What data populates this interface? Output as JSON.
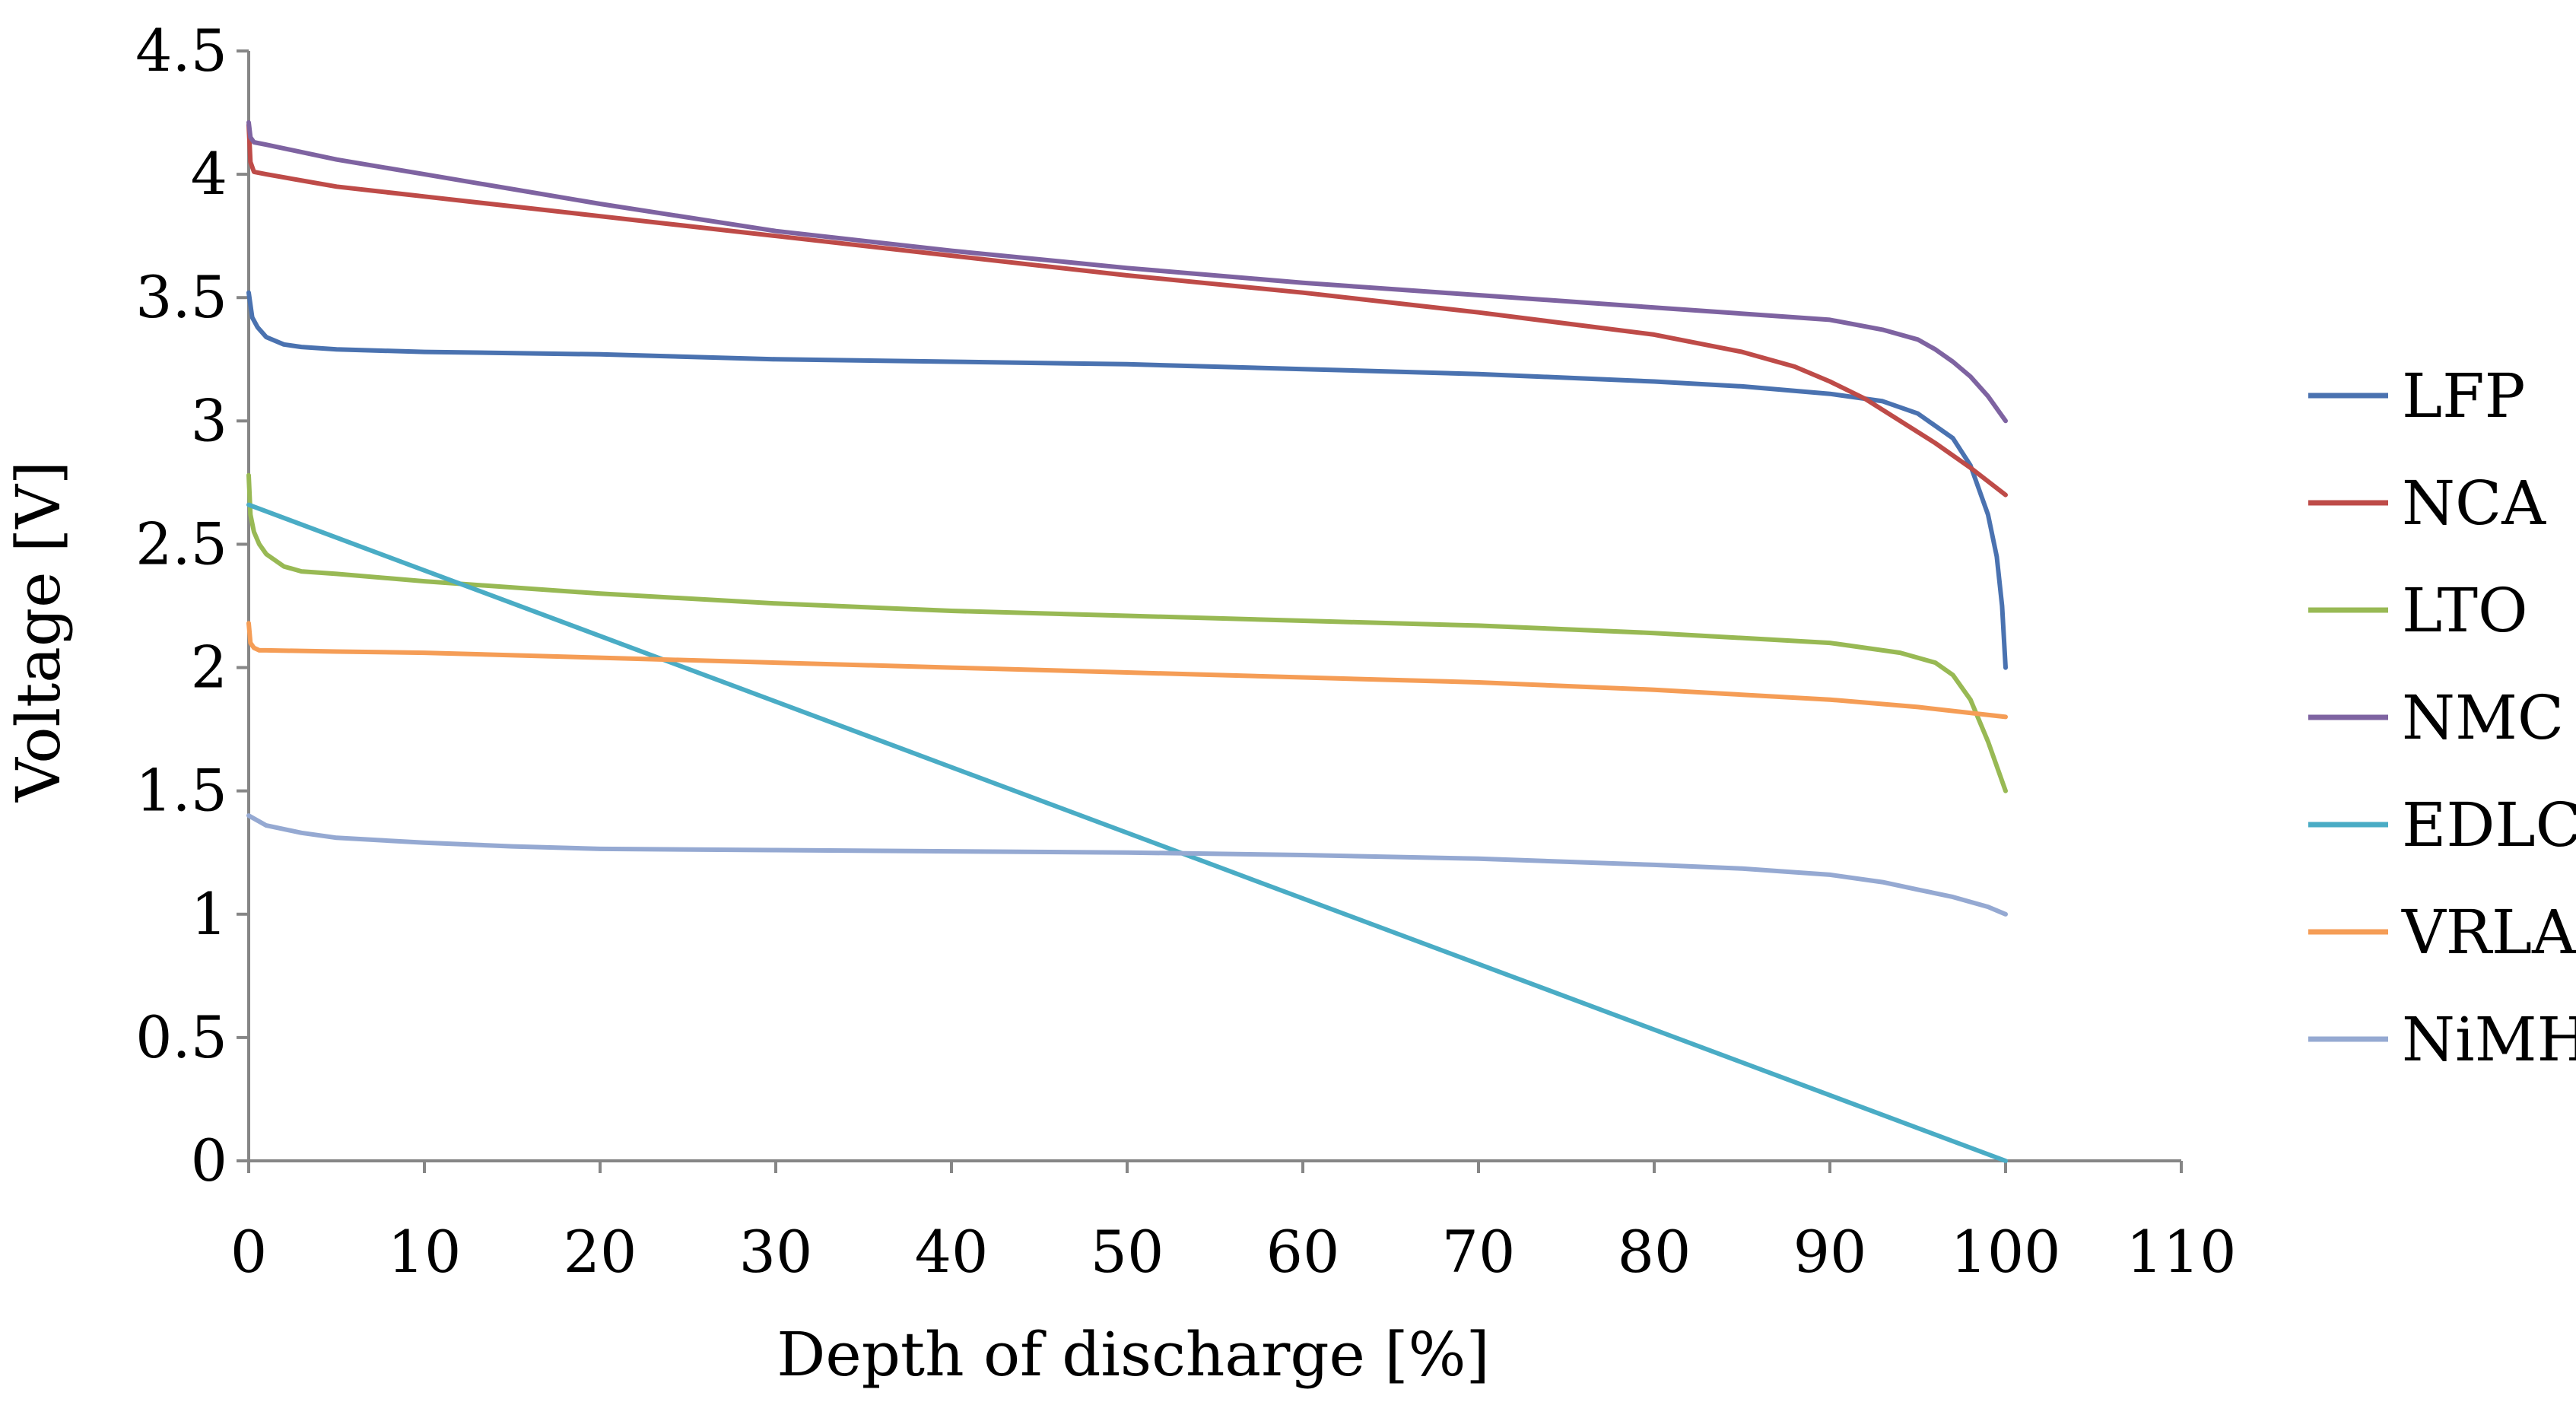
{
  "chart_data": {
    "type": "line",
    "title": "",
    "xlabel": "Depth of discharge [%]",
    "ylabel": "Voltage [V]",
    "xlim": [
      0,
      110
    ],
    "ylim": [
      0,
      4.5
    ],
    "x_ticks": [
      0,
      10,
      20,
      30,
      40,
      50,
      60,
      70,
      80,
      90,
      100,
      110
    ],
    "y_ticks": [
      0,
      0.5,
      1,
      1.5,
      2,
      2.5,
      3,
      3.5,
      4,
      4.5
    ],
    "x_tick_labels": [
      "0",
      "10",
      "20",
      "30",
      "40",
      "50",
      "60",
      "70",
      "80",
      "90",
      "100",
      "110"
    ],
    "y_tick_labels": [
      "0",
      "0.5",
      "1",
      "1.5",
      "2",
      "2.5",
      "3",
      "3.5",
      "4",
      "4.5"
    ],
    "grid": false,
    "legend_position": "right",
    "series": [
      {
        "name": "LFP",
        "color": "#4a72b0",
        "x": [
          0,
          0.2,
          0.5,
          1,
          2,
          3,
          5,
          10,
          20,
          30,
          40,
          50,
          60,
          70,
          80,
          85,
          90,
          93,
          95,
          97,
          98,
          99,
          99.5,
          99.8,
          100
        ],
        "y": [
          3.52,
          3.42,
          3.38,
          3.34,
          3.31,
          3.3,
          3.29,
          3.28,
          3.27,
          3.25,
          3.24,
          3.23,
          3.21,
          3.19,
          3.16,
          3.14,
          3.11,
          3.08,
          3.03,
          2.93,
          2.82,
          2.62,
          2.45,
          2.25,
          2.0
        ]
      },
      {
        "name": "NCA",
        "color": "#be4b48",
        "x": [
          0,
          0.1,
          0.3,
          1,
          5,
          10,
          20,
          30,
          40,
          50,
          60,
          70,
          80,
          85,
          88,
          90,
          92,
          94,
          96,
          98,
          100
        ],
        "y": [
          4.2,
          4.05,
          4.01,
          4.0,
          3.95,
          3.91,
          3.83,
          3.75,
          3.67,
          3.59,
          3.52,
          3.44,
          3.35,
          3.28,
          3.22,
          3.16,
          3.09,
          3.0,
          2.91,
          2.81,
          2.7
        ]
      },
      {
        "name": "LTO",
        "color": "#98b954",
        "x": [
          0,
          0.1,
          0.3,
          0.6,
          1,
          2,
          3,
          5,
          10,
          20,
          30,
          40,
          50,
          60,
          70,
          80,
          90,
          94,
          96,
          97,
          98,
          99,
          100
        ],
        "y": [
          2.78,
          2.62,
          2.55,
          2.5,
          2.46,
          2.41,
          2.39,
          2.38,
          2.35,
          2.3,
          2.26,
          2.23,
          2.21,
          2.19,
          2.17,
          2.14,
          2.1,
          2.06,
          2.02,
          1.97,
          1.87,
          1.7,
          1.5
        ]
      },
      {
        "name": "NMC",
        "color": "#7e63a1",
        "x": [
          0,
          0.1,
          0.3,
          1,
          5,
          10,
          20,
          30,
          40,
          50,
          60,
          70,
          80,
          90,
          93,
          95,
          96,
          97,
          98,
          99,
          100
        ],
        "y": [
          4.21,
          4.15,
          4.13,
          4.12,
          4.06,
          4.0,
          3.88,
          3.77,
          3.69,
          3.62,
          3.56,
          3.51,
          3.46,
          3.41,
          3.37,
          3.33,
          3.29,
          3.24,
          3.18,
          3.1,
          3.0
        ]
      },
      {
        "name": "EDLC",
        "color": "#4aacc5",
        "x": [
          0,
          100
        ],
        "y": [
          2.66,
          0.0
        ]
      },
      {
        "name": "VRLA",
        "color": "#f59d56",
        "x": [
          0,
          0.1,
          0.3,
          0.6,
          1,
          5,
          10,
          20,
          30,
          40,
          50,
          60,
          70,
          80,
          90,
          95,
          100
        ],
        "y": [
          2.18,
          2.1,
          2.08,
          2.07,
          2.07,
          2.065,
          2.06,
          2.04,
          2.02,
          2.0,
          1.98,
          1.96,
          1.94,
          1.91,
          1.87,
          1.84,
          1.8
        ]
      },
      {
        "name": "NiMH",
        "color": "#95a9d2",
        "x": [
          0,
          1,
          3,
          5,
          10,
          15,
          20,
          30,
          40,
          50,
          60,
          70,
          80,
          85,
          90,
          93,
          95,
          97,
          99,
          100
        ],
        "y": [
          1.4,
          1.36,
          1.33,
          1.31,
          1.29,
          1.275,
          1.265,
          1.26,
          1.255,
          1.25,
          1.24,
          1.225,
          1.2,
          1.185,
          1.16,
          1.13,
          1.1,
          1.07,
          1.03,
          1.0
        ]
      }
    ]
  }
}
